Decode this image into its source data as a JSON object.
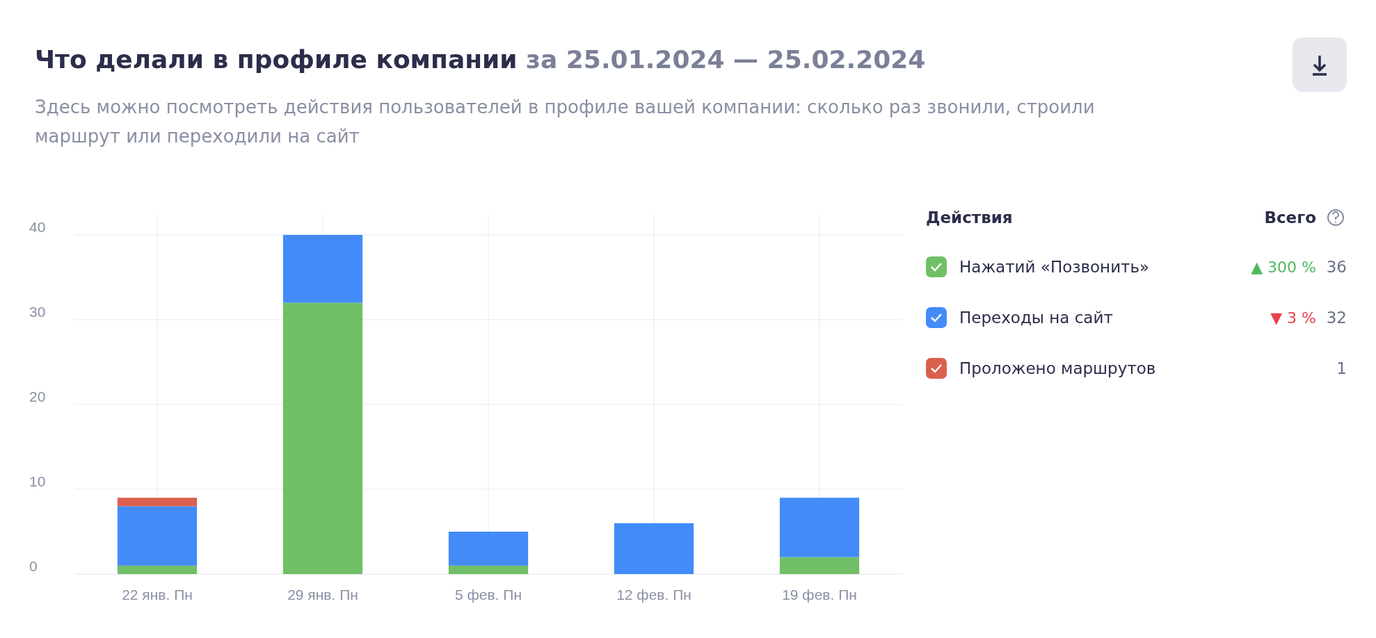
{
  "chart_data": {
    "type": "bar",
    "stacked": true,
    "title": "Что делали в профиле компании",
    "subtitle": "Здесь можно посмотреть действия пользователей в профиле вашей компании: сколько раз звонили, строили маршрут или переходили на сайт",
    "legend_title": "Действия",
    "categories": [
      "22 янв. Пн",
      "29 янв. Пн",
      "5 фев. Пн",
      "12 фев. Пн",
      "19 фев. Пн"
    ],
    "series": [
      {
        "name": "Нажатий «Позвонить»",
        "color": "#71bf66",
        "values": [
          1,
          32,
          1,
          0,
          2
        ]
      },
      {
        "name": "Переходы на сайт",
        "color": "#428bf9",
        "values": [
          7,
          8,
          4,
          6,
          7
        ]
      },
      {
        "name": "Проложено маршрутов",
        "color": "#d9604f",
        "values": [
          1,
          0,
          0,
          0,
          0
        ]
      }
    ],
    "ylim": [
      0,
      40
    ],
    "yticks": [
      0,
      10,
      20,
      30,
      40
    ],
    "grid": true,
    "legend": "right",
    "annotations": [
      "за 25.01.2024 — 25.02.2024",
      "Всего",
      "▲ 300 %",
      "36",
      "▼ 3 %",
      "32",
      "1"
    ]
  }
}
